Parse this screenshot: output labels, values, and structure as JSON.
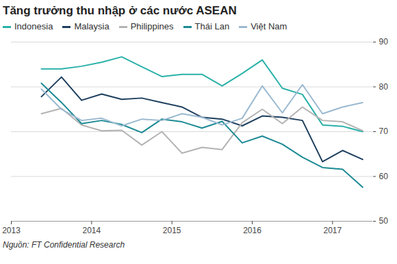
{
  "chart_data": {
    "type": "line",
    "title": "Tăng trưởng thu nhập ở các nước ASEAN",
    "caption": "Nguồn: FT Confidential Research",
    "legend": "top",
    "grid": true,
    "x": [
      2013.375,
      2013.625,
      2013.875,
      2014.125,
      2014.375,
      2014.625,
      2014.875,
      2015.125,
      2015.375,
      2015.625,
      2015.875,
      2016.125,
      2016.375,
      2016.625,
      2016.875,
      2017.125,
      2017.375
    ],
    "xlim": [
      2013,
      2017.5
    ],
    "xticks": [
      2013,
      2014,
      2015,
      2016,
      2017
    ],
    "ylim": [
      50,
      90
    ],
    "yticks": [
      50,
      60,
      70,
      80,
      90
    ],
    "series": [
      {
        "name": "Indonesia",
        "color": "#2ab1a9",
        "values": [
          84.0,
          84.0,
          84.6,
          85.5,
          86.7,
          84.5,
          82.3,
          82.8,
          82.8,
          80.2,
          83.0,
          86.0,
          79.7,
          78.3,
          71.5,
          71.2,
          70.0
        ]
      },
      {
        "name": "Malaysia",
        "color": "#1d3f5e",
        "values": [
          77.8,
          82.2,
          77.0,
          78.4,
          77.2,
          77.5,
          76.5,
          75.5,
          73.2,
          72.8,
          71.3,
          73.5,
          73.2,
          72.5,
          63.3,
          65.8,
          63.8
        ]
      },
      {
        "name": "Philippines",
        "color": "#b3b3b3",
        "values": [
          74.0,
          75.2,
          71.5,
          70.2,
          70.3,
          67.0,
          70.0,
          65.2,
          66.5,
          66.0,
          72.0,
          75.0,
          71.8,
          75.5,
          72.5,
          72.2,
          70.2
        ]
      },
      {
        "name": "Thái Lan",
        "color": "#1b8a94",
        "values": [
          80.8,
          76.5,
          71.8,
          72.5,
          71.6,
          69.8,
          72.8,
          72.2,
          70.8,
          72.3,
          67.5,
          69.0,
          67.2,
          64.3,
          62.0,
          61.6,
          57.6
        ]
      },
      {
        "name": "Việt Nam",
        "color": "#9ab9d0",
        "values": [
          79.5,
          75.0,
          72.5,
          73.0,
          71.3,
          72.8,
          72.5,
          74.0,
          73.2,
          71.5,
          73.0,
          80.2,
          74.2,
          80.5,
          74.0,
          75.5,
          76.5
        ]
      }
    ]
  }
}
